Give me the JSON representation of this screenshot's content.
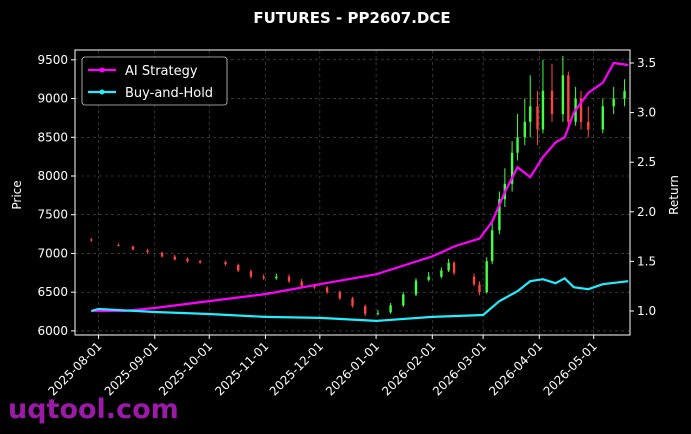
{
  "chart_data": {
    "type": "candlestick",
    "title": "FUTURES - PP2607.DCE",
    "ylabel": "Price",
    "y2label": "Return",
    "watermark": "uqtool.com",
    "xlim": [
      "2025-07-19",
      "2026-05-21"
    ],
    "xticks": [
      "2025-08-01",
      "2025-09-01",
      "2025-10-01",
      "2025-11-01",
      "2025-12-01",
      "2026-01-01",
      "2026-02-01",
      "2026-03-01",
      "2026-04-01",
      "2026-05-01"
    ],
    "ylim": [
      5947,
      9627
    ],
    "yticks": [
      6000,
      6500,
      7000,
      7500,
      8000,
      8500,
      9000,
      9500
    ],
    "y2lim": [
      0.758,
      3.631
    ],
    "y2ticks": [
      {
        "value": 1,
        "label": "1.0"
      },
      1.5,
      {
        "value": 2,
        "label": "2.0"
      },
      2.5,
      {
        "value": 3,
        "label": "3.0"
      },
      3.5
    ],
    "grid": true,
    "legend": "upper left",
    "up_color": "#44ff44",
    "down_color": "#ff4444",
    "candles": {
      "x": [
        "2025-07-28",
        "2025-08-12",
        "2025-08-20",
        "2025-08-28",
        "2025-09-05",
        "2025-09-12",
        "2025-09-19",
        "2025-09-26",
        "2025-10-10",
        "2025-10-17",
        "2025-10-24",
        "2025-10-31",
        "2025-11-07",
        "2025-11-14",
        "2025-11-21",
        "2025-11-28",
        "2025-12-05",
        "2025-12-12",
        "2025-12-19",
        "2025-12-26",
        "2026-01-02",
        "2026-01-09",
        "2026-01-16",
        "2026-01-23",
        "2026-01-30",
        "2026-02-06",
        "2026-02-10",
        "2026-02-13",
        "2026-02-24",
        "2026-02-27",
        "2026-03-03",
        "2026-03-06",
        "2026-03-10",
        "2026-03-13",
        "2026-03-17",
        "2026-03-20",
        "2026-03-24",
        "2026-03-27",
        "2026-03-31",
        "2026-04-03",
        "2026-04-08",
        "2026-04-14",
        "2026-04-17",
        "2026-04-21",
        "2026-04-24",
        "2026-04-28",
        "2026-05-06",
        "2026-05-12",
        "2026-05-18"
      ],
      "open": [
        7180,
        7110,
        7090,
        7040,
        7010,
        6960,
        6930,
        6900,
        6890,
        6850,
        6770,
        6700,
        6680,
        6700,
        6640,
        6590,
        6560,
        6500,
        6420,
        6320,
        6220,
        6240,
        6330,
        6470,
        6660,
        6700,
        6780,
        6880,
        6700,
        6600,
        6500,
        6900,
        7300,
        7700,
        7900,
        8300,
        8500,
        8700,
        8900,
        8600,
        9100,
        8800,
        9300,
        8700,
        9000,
        8700,
        8600,
        8900,
        9000
      ],
      "high": [
        7200,
        7130,
        7100,
        7060,
        7020,
        6980,
        6950,
        6920,
        6910,
        6870,
        6790,
        6730,
        6740,
        6730,
        6670,
        6610,
        6580,
        6520,
        6440,
        6340,
        6270,
        6360,
        6500,
        6680,
        6760,
        6820,
        6930,
        6900,
        6740,
        6640,
        6950,
        7400,
        7800,
        8100,
        8450,
        8800,
        9000,
        9300,
        9100,
        9500,
        9450,
        9550,
        9350,
        9150,
        9100,
        8900,
        9000,
        9150,
        9250
      ],
      "low": [
        7150,
        7090,
        7040,
        7000,
        6950,
        6910,
        6880,
        6870,
        6840,
        6760,
        6680,
        6660,
        6660,
        6620,
        6570,
        6540,
        6480,
        6400,
        6300,
        6190,
        6200,
        6220,
        6310,
        6450,
        6640,
        6680,
        6760,
        6720,
        6580,
        6460,
        6480,
        6860,
        7250,
        7600,
        7800,
        8200,
        8400,
        8500,
        8400,
        8550,
        8700,
        8700,
        8600,
        8650,
        8600,
        8500,
        8550,
        8800,
        8900
      ],
      "close": [
        7170,
        7100,
        7050,
        7020,
        6960,
        6920,
        6900,
        6880,
        6860,
        6780,
        6700,
        6680,
        6700,
        6640,
        6580,
        6560,
        6500,
        6420,
        6320,
        6220,
        6230,
        6330,
        6470,
        6650,
        6700,
        6780,
        6880,
        6750,
        6600,
        6500,
        6900,
        7300,
        7700,
        7900,
        8300,
        8500,
        8700,
        8900,
        8600,
        9100,
        8800,
        9300,
        8700,
        9000,
        8700,
        8600,
        8900,
        9000,
        9100
      ]
    },
    "series": [
      {
        "name": "AI Strategy",
        "color": "#ff00ff",
        "axis": "y2",
        "x": [
          "2025-07-28",
          "2025-08-15",
          "2025-09-01",
          "2025-10-01",
          "2025-11-01",
          "2025-12-01",
          "2026-01-01",
          "2026-02-01",
          "2026-02-13",
          "2026-02-27",
          "2026-03-06",
          "2026-03-13",
          "2026-03-20",
          "2026-03-27",
          "2026-04-03",
          "2026-04-10",
          "2026-04-15",
          "2026-04-20",
          "2026-04-28",
          "2026-05-06",
          "2026-05-12",
          "2026-05-20"
        ],
        "values": [
          1.0,
          1.0,
          1.03,
          1.1,
          1.17,
          1.27,
          1.37,
          1.55,
          1.65,
          1.73,
          1.9,
          2.2,
          2.45,
          2.35,
          2.55,
          2.7,
          2.75,
          3.0,
          3.2,
          3.3,
          3.5,
          3.48
        ]
      },
      {
        "name": "Buy-and-Hold",
        "color": "#22eeff",
        "axis": "y2",
        "x": [
          "2025-07-28",
          "2025-08-01",
          "2025-09-01",
          "2025-10-01",
          "2025-11-01",
          "2025-12-01",
          "2026-01-01",
          "2026-02-01",
          "2026-03-01",
          "2026-03-10",
          "2026-03-20",
          "2026-03-27",
          "2026-04-03",
          "2026-04-10",
          "2026-04-15",
          "2026-04-20",
          "2026-04-28",
          "2026-05-06",
          "2026-05-20"
        ],
        "values": [
          1.0,
          1.02,
          0.99,
          0.97,
          0.94,
          0.93,
          0.9,
          0.94,
          0.96,
          1.1,
          1.2,
          1.3,
          1.32,
          1.28,
          1.33,
          1.24,
          1.22,
          1.27,
          1.3
        ]
      }
    ]
  }
}
